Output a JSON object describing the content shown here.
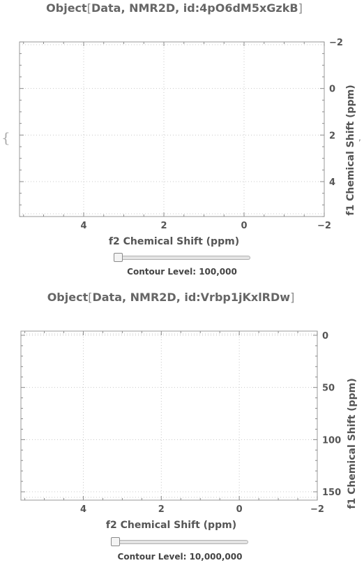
{
  "panels": [
    {
      "title_prefix": "Object",
      "title_body": "Data, NMR2D, id:4pO6dM5xGzkB",
      "slider_label": "Contour Level: 100,000",
      "slider_fraction": 0.0,
      "chart_data": {
        "type": "heatmap",
        "xlabel": "f2 Chemical Shift (ppm)",
        "ylabel": "f1 Chemical Shift (ppm)",
        "xlim": [
          5.6,
          -2.0
        ],
        "ylim": [
          -2.0,
          5.5
        ],
        "x_ticks": [
          4,
          2,
          0,
          -2
        ],
        "x_tick_labels": [
          "4",
          "2",
          "0",
          "−2"
        ],
        "y_ticks": [
          -2,
          0,
          2,
          4
        ],
        "y_tick_labels": [
          "−2",
          "0",
          "2",
          "4"
        ],
        "x_minor_step": 0.5,
        "y_minor_step": 0.5,
        "grid": true,
        "series": []
      }
    },
    {
      "title_prefix": "Object",
      "title_body": "Data, NMR2D, id:Vrbp1jKxlRDw",
      "slider_label": "Contour Level: 10,000,000",
      "slider_fraction": 0.0,
      "chart_data": {
        "type": "heatmap",
        "xlabel": "f2 Chemical Shift (ppm)",
        "ylabel": "f1 Chemical Shift (ppm)",
        "xlim": [
          5.6,
          -2.0
        ],
        "ylim": [
          -4,
          158
        ],
        "x_ticks": [
          4,
          2,
          0,
          -2
        ],
        "x_tick_labels": [
          "4",
          "2",
          "0",
          "−2"
        ],
        "y_ticks": [
          0,
          50,
          100,
          150
        ],
        "y_tick_labels": [
          "0",
          "50",
          "100",
          "150"
        ],
        "x_minor_step": 0.5,
        "y_minor_step": 10,
        "grid": true,
        "series": []
      }
    }
  ]
}
